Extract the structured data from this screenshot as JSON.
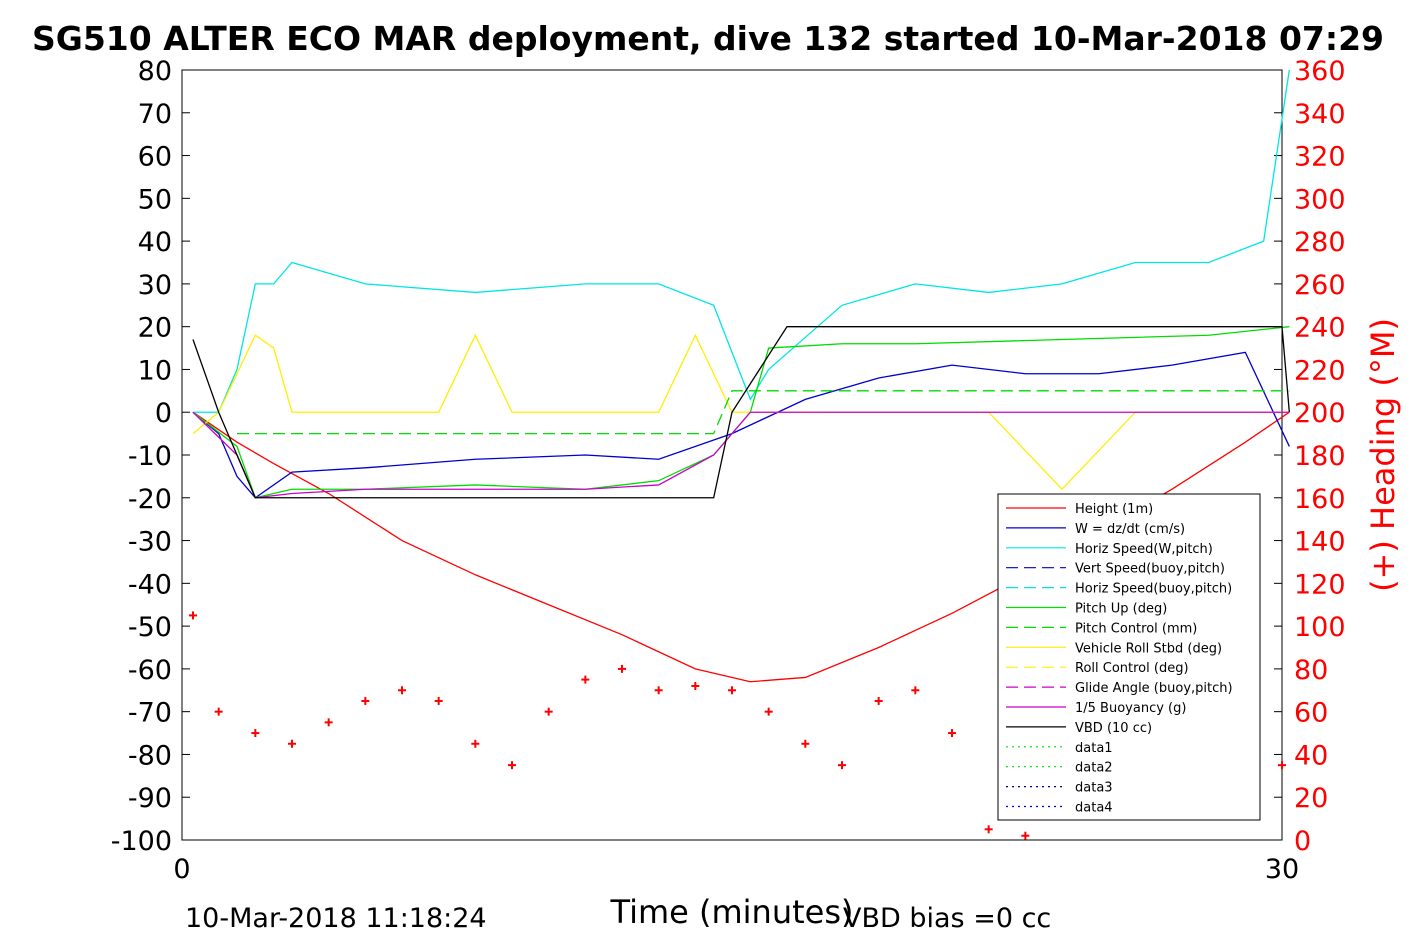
{
  "colors": {
    "height": "#ff0000",
    "w": "#0000cc",
    "horiz": "#00e5e5",
    "pitch": "#00dd00",
    "roll": "#ffee00",
    "glide": "#cc00cc",
    "vbd": "#000000",
    "heading": "#ff0000",
    "axis_right": "#ff0000"
  },
  "chart_data": {
    "type": "line",
    "title": "SG510 ALTER ECO MAR deployment, dive 132 started 10-Mar-2018 07:29",
    "xlabel": "Time (minutes)",
    "ylabel_right": "(+) Heading (°M)",
    "xlim": [
      0,
      30
    ],
    "ylim_left": [
      -100,
      80
    ],
    "ylim_right": [
      0,
      360
    ],
    "xticks": [
      "0",
      "30"
    ],
    "yticks_left": [
      "80",
      "70",
      "60",
      "50",
      "40",
      "30",
      "20",
      "10",
      "0",
      "-10",
      "-20",
      "-30",
      "-40",
      "-50",
      "-60",
      "-70",
      "-80",
      "-90",
      "-100"
    ],
    "yticks_right": [
      "360",
      "340",
      "320",
      "300",
      "280",
      "260",
      "240",
      "220",
      "200",
      "180",
      "160",
      "140",
      "120",
      "100",
      "80",
      "60",
      "40",
      "20",
      "0"
    ],
    "footer_left": "10-Mar-2018 11:18:24",
    "footer_right": "VBD bias =0 cc",
    "legend_placement": "lower-right",
    "legend": [
      {
        "label": "Height (1m)",
        "color": "#ff0000",
        "style": "solid"
      },
      {
        "label": "W = dz/dt (cm/s)",
        "color": "#0000cc",
        "style": "solid"
      },
      {
        "label": "Horiz Speed(W,pitch)",
        "color": "#00e5e5",
        "style": "solid"
      },
      {
        "label": "Vert Speed(buoy,pitch)",
        "color": "#0000cc",
        "style": "dashed"
      },
      {
        "label": "Horiz Speed(buoy,pitch)",
        "color": "#00e5e5",
        "style": "dashed"
      },
      {
        "label": "Pitch Up (deg)",
        "color": "#00dd00",
        "style": "solid"
      },
      {
        "label": "Pitch Control (mm)",
        "color": "#00dd00",
        "style": "dashed"
      },
      {
        "label": "Vehicle Roll Stbd (deg)",
        "color": "#ffee00",
        "style": "solid"
      },
      {
        "label": "Roll Control (deg)",
        "color": "#ffee00",
        "style": "dashed"
      },
      {
        "label": "Glide Angle (buoy,pitch)",
        "color": "#cc00cc",
        "style": "dashed"
      },
      {
        "label": "1/5 Buoyancy (g)",
        "color": "#cc00cc",
        "style": "solid"
      },
      {
        "label": "VBD (10 cc)",
        "color": "#000000",
        "style": "solid"
      },
      {
        "label": "data1",
        "color": "#00dd00",
        "style": "dotted"
      },
      {
        "label": "data2",
        "color": "#00dd00",
        "style": "dotted"
      },
      {
        "label": "data3",
        "color": "#000080",
        "style": "dotted"
      },
      {
        "label": "data4",
        "color": "#0000cc",
        "style": "dotted"
      }
    ],
    "series": [
      {
        "name": "Height (1m)",
        "x": [
          0.3,
          1.5,
          2.5,
          4,
          6,
          8,
          10,
          12,
          14,
          15.5,
          17,
          19,
          21,
          23,
          25,
          27,
          29,
          30.2
        ],
        "y": [
          0,
          -7,
          -12,
          -19,
          -30,
          -38,
          -45,
          -52,
          -60,
          -63,
          -62,
          -55,
          -47,
          -38,
          -28,
          -18,
          -7,
          0
        ]
      },
      {
        "name": "W = dz/dt (cm/s)",
        "x": [
          0.3,
          1,
          1.5,
          2,
          3,
          5,
          8,
          11,
          13,
          15,
          17,
          19,
          21,
          23,
          25,
          27,
          29,
          30.2
        ],
        "y": [
          0,
          -5,
          -15,
          -20,
          -14,
          -13,
          -11,
          -10,
          -11,
          -5,
          3,
          8,
          11,
          9,
          9,
          11,
          14,
          -8
        ]
      },
      {
        "name": "Horiz Speed(W,pitch)",
        "x": [
          0.3,
          1,
          1.5,
          2,
          2.5,
          3,
          5,
          8,
          11,
          13,
          14.5,
          15.5,
          16,
          18,
          20,
          22,
          24,
          26,
          28,
          29.5,
          30.2
        ],
        "y": [
          0,
          0,
          10,
          30,
          30,
          35,
          30,
          28,
          30,
          30,
          25,
          3,
          10,
          25,
          30,
          28,
          30,
          35,
          35,
          40,
          80
        ]
      },
      {
        "name": "Pitch Up (deg)",
        "x": [
          0.3,
          1.5,
          2,
          3,
          5,
          8,
          11,
          13,
          14.5,
          15.5,
          16,
          18,
          20,
          24,
          28,
          30.2
        ],
        "y": [
          0,
          -8,
          -20,
          -18,
          -18,
          -17,
          -18,
          -16,
          -10,
          0,
          15,
          16,
          16,
          17,
          18,
          20
        ]
      },
      {
        "name": "Vehicle Roll Stbd (deg)",
        "x": [
          0.3,
          1,
          2,
          2.5,
          3,
          4,
          7,
          8,
          9,
          11,
          13,
          14,
          15,
          17,
          20,
          21,
          22,
          24,
          26,
          28,
          30.2
        ],
        "y": [
          -5,
          0,
          18,
          15,
          0,
          0,
          0,
          18,
          0,
          0,
          0,
          18,
          0,
          0,
          0,
          0,
          0,
          -18,
          0,
          0,
          0
        ]
      },
      {
        "name": "1/5 Buoyancy (g)",
        "x": [
          0.3,
          1.5,
          2,
          3,
          5,
          8,
          11,
          13,
          14.5,
          15.5,
          30.2
        ],
        "y": [
          0,
          -10,
          -20,
          -19,
          -18,
          -18,
          -18,
          -17,
          -10,
          0,
          0
        ]
      },
      {
        "name": "VBD (10 cc)",
        "x": [
          0.3,
          1,
          1.5,
          2,
          3,
          10,
          13,
          14.5,
          15,
          16.5,
          17.5,
          30,
          30.2
        ],
        "y": [
          17,
          0,
          -10,
          -20,
          -20,
          -20,
          -20,
          -20,
          0,
          20,
          20,
          20,
          0
        ]
      },
      {
        "name": "Pitch Control (mm)",
        "x": [
          1.5,
          14.5,
          15,
          30.2
        ],
        "y": [
          -5,
          -5,
          5,
          5
        ]
      },
      {
        "name": "Heading",
        "x": [
          0.3,
          1,
          2,
          3,
          4,
          5,
          6,
          7,
          8,
          9,
          10,
          11,
          12,
          13,
          14,
          15,
          16,
          17,
          18,
          19,
          20,
          21,
          22,
          23,
          24,
          25,
          26,
          27,
          28,
          29,
          30
        ],
        "y": [
          105,
          60,
          50,
          45,
          55,
          65,
          70,
          65,
          45,
          35,
          60,
          75,
          80,
          70,
          72,
          70,
          60,
          45,
          35,
          65,
          70,
          50,
          5,
          2,
          40,
          75,
          60,
          65,
          45,
          40,
          35
        ]
      }
    ]
  }
}
